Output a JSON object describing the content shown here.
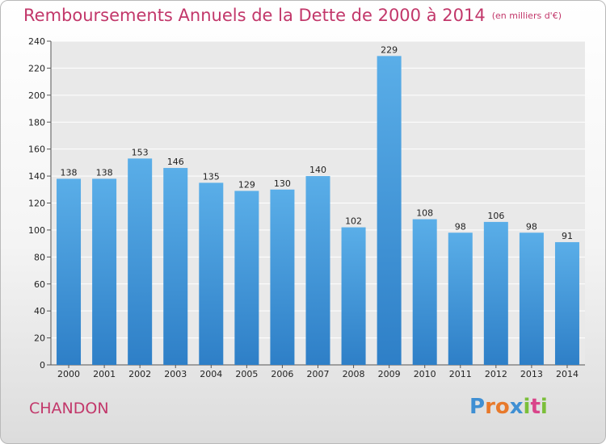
{
  "title": "Remboursements Annuels de la Dette de 2000 à 2014",
  "unit": "(en milliers d'€)",
  "commune": "CHANDON",
  "brand": {
    "letters": [
      "P",
      "r",
      "o",
      "x",
      "i",
      "t",
      "i"
    ],
    "colors": [
      "#3f8fd3",
      "#e8792b",
      "#e8792b",
      "#3f8fd3",
      "#7bbf3a",
      "#d9448a",
      "#7bbf3a"
    ]
  },
  "colors": {
    "bar_light": "#5aaee8",
    "bar_dark": "#2e7fc7",
    "title": "#c2376a"
  },
  "chart_data": {
    "type": "bar",
    "categories": [
      "2000",
      "2001",
      "2002",
      "2003",
      "2004",
      "2005",
      "2006",
      "2007",
      "2008",
      "2009",
      "2010",
      "2011",
      "2012",
      "2013",
      "2014"
    ],
    "values": [
      138,
      138,
      153,
      146,
      135,
      129,
      130,
      140,
      102,
      229,
      108,
      98,
      106,
      98,
      91
    ],
    "data_labels": [
      "138",
      "138",
      "153",
      "146",
      "135",
      "129",
      "130",
      "140",
      "102",
      "229",
      "108",
      "98",
      "106",
      "98",
      "91"
    ],
    "yticks": [
      0,
      20,
      40,
      60,
      80,
      100,
      120,
      140,
      160,
      180,
      200,
      220,
      240
    ],
    "ylim": [
      0,
      240
    ],
    "grid": true,
    "xlabel": "",
    "ylabel": ""
  }
}
